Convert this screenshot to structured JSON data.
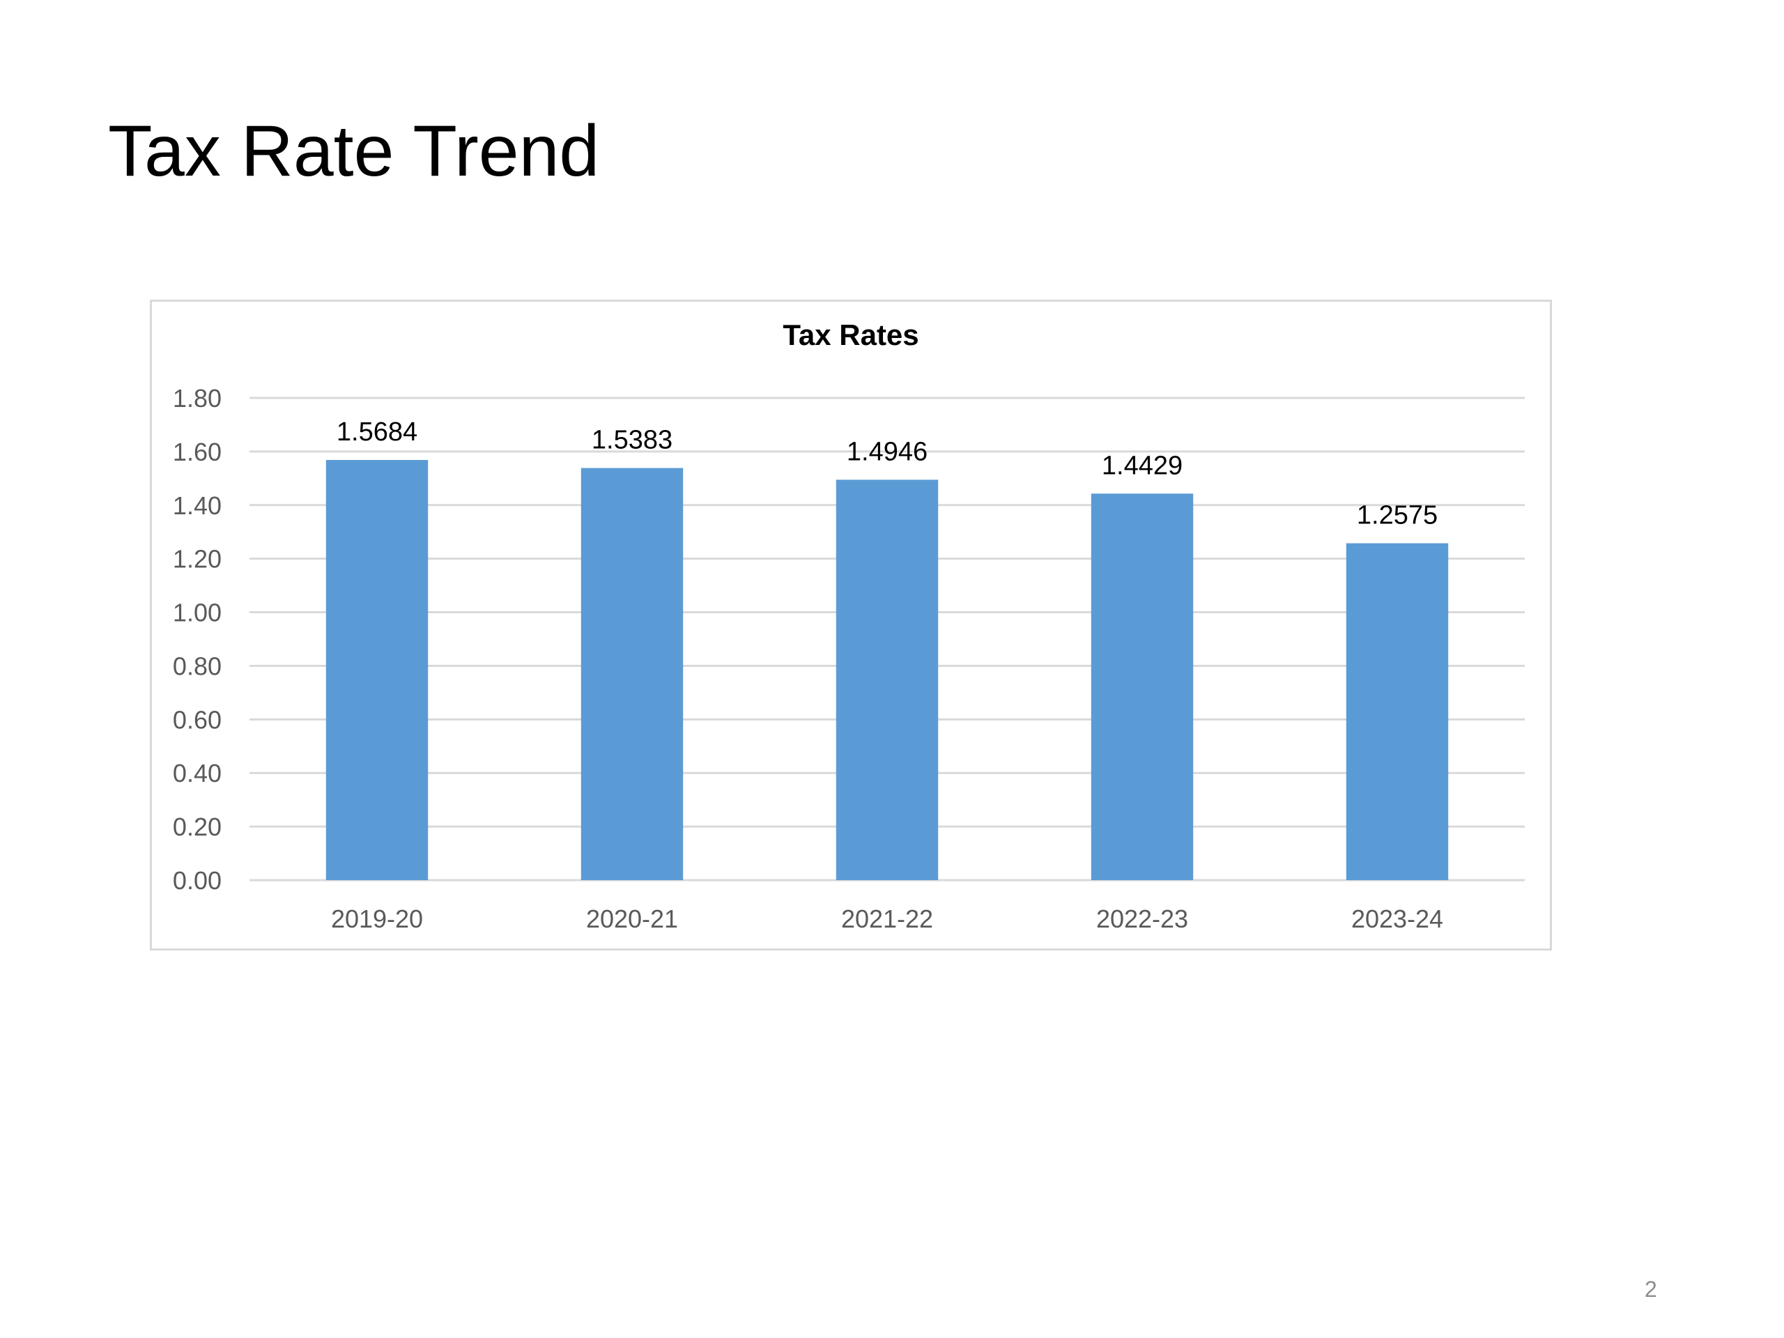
{
  "slide": {
    "title": "Tax Rate Trend",
    "page_number": "2"
  },
  "chart_data": {
    "type": "bar",
    "title": "Tax Rates",
    "categories": [
      "2019-20",
      "2020-21",
      "2021-22",
      "2022-23",
      "2023-24"
    ],
    "values": [
      1.5684,
      1.5383,
      1.4946,
      1.4429,
      1.2575
    ],
    "value_labels": [
      "1.5684",
      "1.5383",
      "1.4946",
      "1.4429",
      "1.2575"
    ],
    "xlabel": "",
    "ylabel": "",
    "ylim": [
      0,
      1.8
    ],
    "yticks": [
      "0.00",
      "0.20",
      "0.40",
      "0.60",
      "0.80",
      "1.00",
      "1.20",
      "1.40",
      "1.60",
      "1.80"
    ],
    "grid": true,
    "legend": "none",
    "colors": {
      "bar": "#5b9bd5",
      "grid": "#d9d9d9",
      "tick_text": "#595959",
      "label_text": "#000000"
    }
  }
}
